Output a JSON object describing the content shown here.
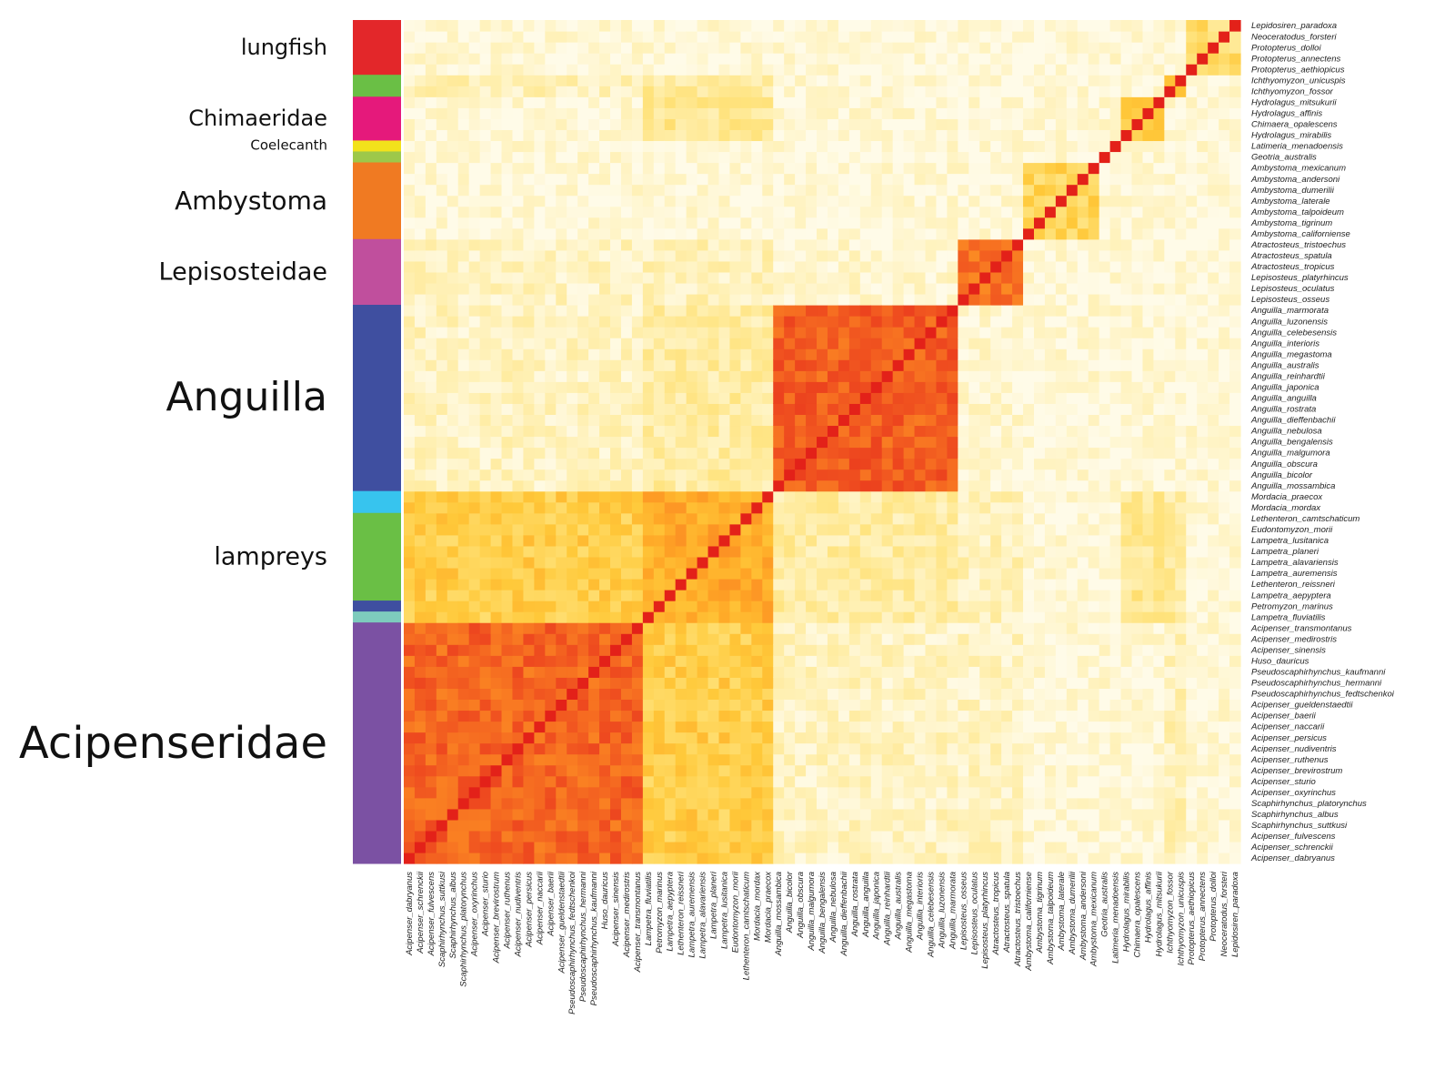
{
  "chart_data": {
    "type": "heatmap",
    "title": "",
    "xlabel": "",
    "ylabel": "",
    "color_scale": [
      "#fffbe8",
      "#fff0b3",
      "#ffe27a",
      "#ffc93a",
      "#ffa726",
      "#f97b22",
      "#ee4a1f",
      "#e32119"
    ],
    "value_range": [
      0,
      1
    ],
    "grid": false,
    "legend": "none",
    "species_bottom_to_top": [
      "Acipenser_dabryanus",
      "Acipenser_schrenckii",
      "Acipenser_fulvescens",
      "Scaphirhynchus_suttkusi",
      "Scaphirhynchus_albus",
      "Scaphirhynchus_platorynchus",
      "Acipenser_oxyrinchus",
      "Acipenser_sturio",
      "Acipenser_brevirostrum",
      "Acipenser_ruthenus",
      "Acipenser_nudiventris",
      "Acipenser_persicus",
      "Acipenser_naccarii",
      "Acipenser_baerii",
      "Acipenser_gueldenstaedtii",
      "Pseudoscaphirhynchus_fedtschenkoi",
      "Pseudoscaphirhynchus_hermanni",
      "Pseudoscaphirhynchus_kaufmanni",
      "Huso_dauricus",
      "Acipenser_sinensis",
      "Acipenser_medirostris",
      "Acipenser_transmontanus",
      "Lampetra_fluviatilis",
      "Petromyzon_marinus",
      "Lampetra_aepyptera",
      "Lethenteron_reissneri",
      "Lampetra_auremensis",
      "Lampetra_alavariensis",
      "Lampetra_planeri",
      "Lampetra_lusitanica",
      "Eudontomyzon_morii",
      "Lethenteron_camtschaticum",
      "Mordacia_mordax",
      "Mordacia_praecox",
      "Anguilla_mossambica",
      "Anguilla_bicolor",
      "Anguilla_obscura",
      "Anguilla_malgumora",
      "Anguilla_bengalensis",
      "Anguilla_nebulosa",
      "Anguilla_dieffenbachii",
      "Anguilla_rostrata",
      "Anguilla_anguilla",
      "Anguilla_japonica",
      "Anguilla_reinhardtii",
      "Anguilla_australis",
      "Anguilla_megastoma",
      "Anguilla_interioris",
      "Anguilla_celebesensis",
      "Anguilla_luzonensis",
      "Anguilla_marmorata",
      "Lepisosteus_osseus",
      "Lepisosteus_oculatus",
      "Lepisosteus_platyrhincus",
      "Atractosteus_tropicus",
      "Atractosteus_spatula",
      "Atractosteus_tristoechus",
      "Ambystoma_californiense",
      "Ambystoma_tigrinum",
      "Ambystoma_talpoideum",
      "Ambystoma_laterale",
      "Ambystoma_dumerilii",
      "Ambystoma_andersoni",
      "Ambystoma_mexicanum",
      "Geotria_australis",
      "Latimeria_menadoensis",
      "Hydrolagus_mirabilis",
      "Chimaera_opalescens",
      "Hydrolagus_affinis",
      "Hydrolagus_mitsukurii",
      "Ichthyomyzon_fossor",
      "Ichthyomyzon_unicuspis",
      "Protopterus_aethiopicus",
      "Protopterus_annectens",
      "Protopterus_dolloi",
      "Neoceratodus_forsteri",
      "Lepidosiren_paradoxa"
    ],
    "x_tick_labels": [
      "Acipenser_dabryanus",
      "Acipenser_schrenckii",
      "Acipenser_fulvescens",
      "Scaphirhynchus_suttkusi",
      "Scaphirhynchus_albus",
      "Scaphirhynchus_platorynchus",
      "Acipenser_oxyrinchus",
      "Acipenser_sturio",
      "Acipenser_brevirostrum",
      "Acipenser_ruthenus",
      "Acipenser_nudiventris",
      "Acipenser_persicus",
      "Acipenser_naccarii",
      "Acipenser_baerii",
      "Acipenser_gueldenstaedtii",
      "Pseudoscaphirhynchus_fedtschenkoi",
      "Pseudoscaphirhynchus_hermanni",
      "Pseudoscaphirhynchus_kaufmanni",
      "Huso_dauricus",
      "Acipenser_sinensis",
      "Acipenser_medirostris",
      "Acipenser_transmontanus",
      "Lampetra_fluviatilis",
      "Petromyzon_marinus",
      "Lampetra_aepyptera",
      "Lethenteron_reissneri",
      "Lampetra_auremensis",
      "Lampetra_alavariensis",
      "Lampetra_planeri",
      "Lampetra_lusitanica",
      "Eudontomyzon_morii",
      "Lethenteron_camtschaticum",
      "Mordacia_mordax",
      "Mordacia_praecox",
      "Anguilla_mossambica",
      "Anguilla_bicolor",
      "Anguilla_obscura",
      "Anguilla_malgumora",
      "Anguilla_bengalensis",
      "Anguilla_nebulosa",
      "Anguilla_dieffenbachii",
      "Anguilla_rostrata",
      "Anguilla_anguilla",
      "Anguilla_japonica",
      "Anguilla_reinhardtii",
      "Anguilla_australis",
      "Anguilla_megastoma",
      "Anguilla_interioris",
      "Anguilla_celebesensis",
      "Anguilla_luzonensis",
      "Anguilla_marmorata",
      "Lepisosteus_osseus",
      "Lepisosteus_oculatus",
      "Lepisosteus_platyrhincus",
      "Atractosteus_tropicus",
      "Atractosteus_spatula",
      "Atractosteus_tristoechus",
      "Ambystoma_californiense",
      "Ambystoma_tigrinum",
      "Ambystoma_talpoideum",
      "Ambystoma_laterale",
      "Ambystoma_dumerilii",
      "Ambystoma_andersoni",
      "Ambystoma_mexicanum",
      "Geotria_australis",
      "Latimeria_menadoensis",
      "Hydrolagus_mirabilis",
      "Chimaera_opalescens",
      "Hydrolagus_affinis",
      "Hydrolagus_mitsukurii",
      "Ichthyomyzon_fossor",
      "Ichthyomyzon_unicuspis",
      "Protopterus_aethiopicus",
      "Protopterus_annectens",
      "Protopterus_dolloi",
      "Neoceratodus_forsteri",
      "Lepidosiren_paradoxa"
    ],
    "y_tick_labels_top_to_bottom": [
      "Lepidosiren_paradoxa",
      "Neoceratodus_forsteri",
      "Protopterus_dolloi",
      "Protopterus_annectens",
      "Protopterus_aethiopicus",
      "Ichthyomyzon_unicuspis",
      "Ichthyomyzon_fossor",
      "Hydrolagus_mitsukurii",
      "Hydrolagus_affinis",
      "Chimaera_opalescens",
      "Hydrolagus_mirabilis",
      "Latimeria_menadoensis",
      "Geotria_australis",
      "Ambystoma_mexicanum",
      "Ambystoma_andersoni",
      "Ambystoma_dumerilii",
      "Ambystoma_laterale",
      "Ambystoma_talpoideum",
      "Ambystoma_tigrinum",
      "Ambystoma_californiense",
      "Atractosteus_tristoechus",
      "Atractosteus_spatula",
      "Atractosteus_tropicus",
      "Lepisosteus_platyrhincus",
      "Lepisosteus_oculatus",
      "Lepisosteus_osseus",
      "Anguilla_marmorata",
      "Anguilla_luzonensis",
      "Anguilla_celebesensis",
      "Anguilla_interioris",
      "Anguilla_megastoma",
      "Anguilla_australis",
      "Anguilla_reinhardtii",
      "Anguilla_japonica",
      "Anguilla_anguilla",
      "Anguilla_rostrata",
      "Anguilla_dieffenbachii",
      "Anguilla_nebulosa",
      "Anguilla_bengalensis",
      "Anguilla_malgumora",
      "Anguilla_obscura",
      "Anguilla_bicolor",
      "Anguilla_mossambica",
      "Mordacia_praecox",
      "Mordacia_mordax",
      "Lethenteron_camtschaticum",
      "Eudontomyzon_morii",
      "Lampetra_lusitanica",
      "Lampetra_planeri",
      "Lampetra_alavariensis",
      "Lampetra_auremensis",
      "Lethenteron_reissneri",
      "Lampetra_aepyptera",
      "Petromyzon_marinus",
      "Lampetra_fluviatilis",
      "Acipenser_transmontanus",
      "Acipenser_medirostris",
      "Acipenser_sinensis",
      "Huso_dauricus",
      "Pseudoscaphirhynchus_kaufmanni",
      "Pseudoscaphirhynchus_hermanni",
      "Pseudoscaphirhynchus_fedtschenkoi",
      "Acipenser_gueldenstaedtii",
      "Acipenser_baerii",
      "Acipenser_naccarii",
      "Acipenser_persicus",
      "Acipenser_nudiventris",
      "Acipenser_ruthenus",
      "Acipenser_brevirostrum",
      "Acipenser_sturio",
      "Acipenser_oxyrinchus",
      "Scaphirhynchus_platorynchus",
      "Scaphirhynchus_albus",
      "Scaphirhynchus_suttkusi",
      "Acipenser_fulvescens",
      "Acipenser_schrenckii",
      "Acipenser_dabryanus"
    ],
    "row_groups_top_to_bottom": [
      {
        "label": "lungfish",
        "rows": 5,
        "color": "#e3272a"
      },
      {
        "label": "",
        "rows": 2,
        "color": "#6abf45"
      },
      {
        "label": "Chimaeridae",
        "rows": 4,
        "color": "#e5197b"
      },
      {
        "label": "Coelecanth",
        "rows": 1,
        "color": "#f2e21b"
      },
      {
        "label": "",
        "rows": 1,
        "color": "#9dc84a"
      },
      {
        "label": "Ambystoma",
        "rows": 7,
        "color": "#f07a22"
      },
      {
        "label": "Lepisosteidae",
        "rows": 6,
        "color": "#c04f9d"
      },
      {
        "label": "Anguilla",
        "rows": 17,
        "color": "#3f4fa0"
      },
      {
        "label": "",
        "rows": 2,
        "color": "#37c4ee"
      },
      {
        "label": "lampreys",
        "rows": 8,
        "color": "#6abf45"
      },
      {
        "label": "",
        "rows": 1,
        "color": "#3f4fa0"
      },
      {
        "label": "",
        "rows": 1,
        "color": "#7ecbbd"
      },
      {
        "label": "Acipenseridae",
        "rows": 22,
        "color": "#7b51a3"
      }
    ],
    "clusters": [
      {
        "name": "Acipenseridae",
        "start": 0,
        "end": 21
      },
      {
        "name": "lampreys",
        "start": 22,
        "end": 33
      },
      {
        "name": "Anguilla",
        "start": 34,
        "end": 50
      },
      {
        "name": "Lepisosteidae",
        "start": 51,
        "end": 56
      },
      {
        "name": "Ambystoma",
        "start": 57,
        "end": 63
      },
      {
        "name": "Geotria",
        "start": 64,
        "end": 64
      },
      {
        "name": "Coelecanth",
        "start": 65,
        "end": 65
      },
      {
        "name": "Chimaeridae",
        "start": 66,
        "end": 69
      },
      {
        "name": "Ichthyomyzon",
        "start": 70,
        "end": 71
      },
      {
        "name": "lungfish",
        "start": 72,
        "end": 76
      }
    ],
    "block_similarity": {
      "within_cluster": {
        "Acipenseridae": 0.78,
        "lampreys": 0.55,
        "Anguilla": 0.8,
        "Lepisosteidae": 0.75,
        "Ambystoma": 0.35,
        "Geotria": 1.0,
        "Coelecanth": 1.0,
        "Chimaeridae": 0.45,
        "Ichthyomyzon": 0.5,
        "lungfish": 0.3
      },
      "between_clusters": [
        {
          "a": "Acipenseridae",
          "b": "lampreys",
          "value": 0.4
        },
        {
          "a": "Acipenseridae",
          "b": "Anguilla",
          "value": 0.1
        },
        {
          "a": "Acipenseridae",
          "b": "Lepisosteidae",
          "value": 0.1
        },
        {
          "a": "lampreys",
          "b": "Anguilla",
          "value": 0.18
        },
        {
          "a": "lampreys",
          "b": "Lepisosteidae",
          "value": 0.12
        },
        {
          "a": "Anguilla",
          "b": "Lepisosteidae",
          "value": 0.06
        },
        {
          "a": "lampreys",
          "b": "Chimaeridae",
          "value": 0.22
        },
        {
          "a": "lampreys",
          "b": "Ichthyomyzon",
          "value": 0.2
        },
        {
          "a": "Acipenseridae",
          "b": "Ichthyomyzon",
          "value": 0.12
        }
      ],
      "diagonal": 1.0,
      "background": 0.04
    }
  }
}
